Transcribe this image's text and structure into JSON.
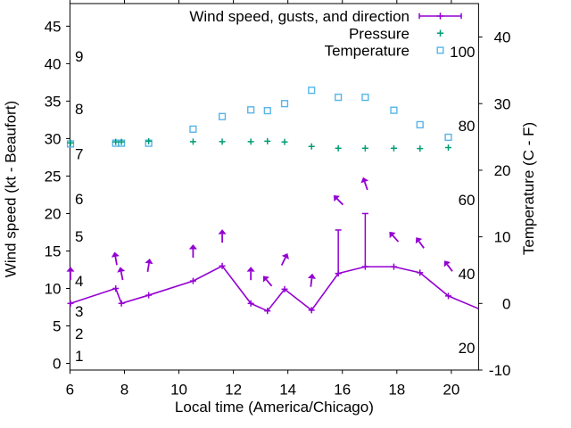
{
  "chart_data": {
    "type": "line",
    "title": "",
    "xlabel": "Local time (America/Chicago)",
    "ylabel_left": "Wind speed (kt - Beaufort)",
    "ylabel_right": "Temperature (C - F)",
    "colors": {
      "wind": "#9400d3",
      "pressure": "#009e73",
      "temperature": "#56b4e9",
      "frame": "#000000",
      "text": "#000000",
      "background": "#ffffff"
    },
    "legend": [
      {
        "label": "Wind speed, gusts, and direction",
        "series": "wind",
        "sample": "errorbar-line-plus"
      },
      {
        "label": "Pressure",
        "series": "pressure",
        "sample": "plus"
      },
      {
        "label": "Temperature",
        "series": "temperature",
        "sample": "open-square"
      }
    ],
    "axes": {
      "x_range": [
        6,
        21
      ],
      "x_ticks": [
        6,
        8,
        10,
        12,
        14,
        16,
        18,
        20
      ],
      "left_range_kt": [
        -0.89,
        48.02
      ],
      "left_ticks_kt": [
        0,
        5,
        10,
        15,
        20,
        25,
        30,
        35,
        40,
        45
      ],
      "right_range_c": [
        -10,
        45.02
      ],
      "right_ticks_c": [
        -10,
        0,
        10,
        20,
        30,
        40
      ],
      "beaufort_scale_labels": [
        {
          "label": "1",
          "kt": 1
        },
        {
          "label": "2",
          "kt": 4
        },
        {
          "label": "3",
          "kt": 7
        },
        {
          "label": "4",
          "kt": 11
        },
        {
          "label": "5",
          "kt": 17
        },
        {
          "label": "6",
          "kt": 22
        },
        {
          "label": "7",
          "kt": 28
        },
        {
          "label": "8",
          "kt": 34
        },
        {
          "label": "9",
          "kt": 41
        }
      ],
      "fahrenheit_scale_labels": [
        {
          "label": "20",
          "f": 20
        },
        {
          "label": "40",
          "f": 40
        },
        {
          "label": "60",
          "f": 60
        },
        {
          "label": "80",
          "f": 80
        },
        {
          "label": "100",
          "f": 100
        }
      ],
      "grid": false,
      "legend_position": "top-right-inside"
    },
    "series": {
      "wind": {
        "units": "kt",
        "comment": "t = local hour; kt = wind speed; gust_kt = gust (errorbar top); dir_deg = arrow direction, 0 = up, positive clockwise; arrows centered 4 kt above max(speed,gust)",
        "points": [
          {
            "t": 6.02,
            "kt": 8.0,
            "gust_kt": 8.0,
            "dir_deg": 0
          },
          {
            "t": 7.68,
            "kt": 10.0,
            "gust_kt": 10.0,
            "dir_deg": -10
          },
          {
            "t": 7.89,
            "kt": 8.0,
            "gust_kt": 8.0,
            "dir_deg": -11
          },
          {
            "t": 8.89,
            "kt": 9.1,
            "gust_kt": 9.1,
            "dir_deg": 9
          },
          {
            "t": 10.52,
            "kt": 11.0,
            "gust_kt": 11.0,
            "dir_deg": 0
          },
          {
            "t": 11.59,
            "kt": 13.0,
            "gust_kt": 13.0,
            "dir_deg": 0
          },
          {
            "t": 12.64,
            "kt": 8.0,
            "gust_kt": 8.0,
            "dir_deg": 0
          },
          {
            "t": 13.25,
            "kt": 7.0,
            "gust_kt": 7.0,
            "dir_deg": -40
          },
          {
            "t": 13.88,
            "kt": 9.9,
            "gust_kt": 9.9,
            "dir_deg": 26
          },
          {
            "t": 14.87,
            "kt": 7.1,
            "gust_kt": 7.1,
            "dir_deg": 7
          },
          {
            "t": 15.85,
            "kt": 12.0,
            "gust_kt": 17.8,
            "dir_deg": -45
          },
          {
            "t": 16.84,
            "kt": 12.9,
            "gust_kt": 20.0,
            "dir_deg": -19
          },
          {
            "t": 17.89,
            "kt": 12.9,
            "gust_kt": 12.9,
            "dir_deg": -42
          },
          {
            "t": 18.85,
            "kt": 12.1,
            "gust_kt": 12.1,
            "dir_deg": -36
          },
          {
            "t": 19.89,
            "kt": 9.0,
            "gust_kt": 9.0,
            "dir_deg": -37
          },
          {
            "t": 21.0,
            "kt": 7.3,
            "line_only": true
          }
        ]
      },
      "pressure": {
        "units": "inHg (plotted on left axis scale)",
        "t": [
          6.02,
          7.68,
          7.89,
          8.89,
          10.52,
          11.59,
          12.64,
          13.25,
          13.88,
          14.87,
          15.85,
          16.84,
          17.89,
          18.85,
          19.89
        ],
        "value": [
          29.43,
          29.56,
          29.56,
          29.65,
          29.59,
          29.59,
          29.59,
          29.65,
          29.55,
          28.95,
          28.71,
          28.71,
          28.71,
          28.67,
          28.8
        ]
      },
      "temperature": {
        "units": "F (right axis shows C and F)",
        "t": [
          6.02,
          7.68,
          7.89,
          8.89,
          10.52,
          11.59,
          12.64,
          13.25,
          13.88,
          14.87,
          15.85,
          16.84,
          17.89,
          18.85,
          19.89
        ],
        "f": [
          75.1,
          75.3,
          75.3,
          75.3,
          79.1,
          82.5,
          84.3,
          84.1,
          86.0,
          89.6,
          87.7,
          87.7,
          84.2,
          80.3,
          76.9
        ]
      }
    }
  }
}
